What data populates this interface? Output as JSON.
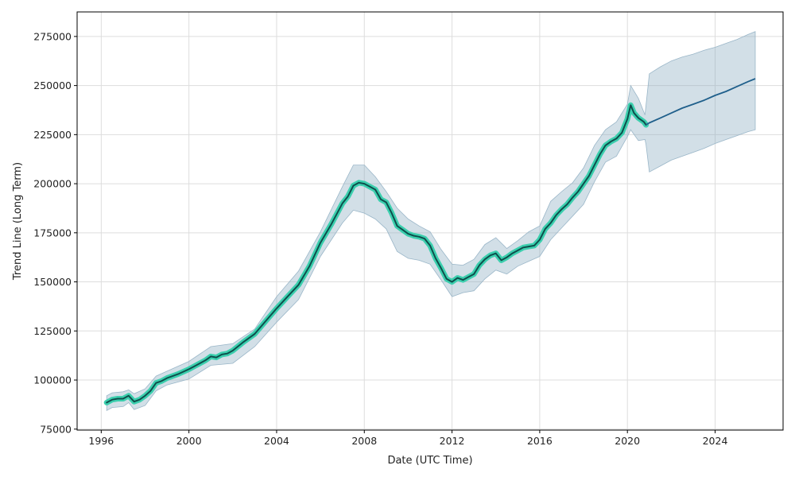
{
  "chart_data": {
    "type": "line",
    "title": "",
    "xlabel": "Date (UTC Time)",
    "ylabel": "Trend Line (Long Term)",
    "xlim": [
      1994.9,
      2027.1
    ],
    "ylim": [
      74500,
      287500
    ],
    "x_ticks": [
      1996,
      2000,
      2004,
      2008,
      2012,
      2016,
      2020,
      2024
    ],
    "y_ticks": [
      75000,
      100000,
      125000,
      150000,
      175000,
      200000,
      225000,
      250000,
      275000
    ],
    "grid": true,
    "legend": "none",
    "colors": {
      "history_line": "#0d4f4c",
      "history_glow": "#3ccfae",
      "forecast_line": "#1f5f8b",
      "band": "#8fb0c4"
    },
    "series": [
      {
        "kind": "history",
        "x": [
          1996.25,
          1996.5,
          1996.75,
          1997.0,
          1997.25,
          1997.5,
          1997.75,
          1998.0,
          1998.25,
          1998.5,
          1998.75,
          1999.0,
          1999.5,
          2000.0,
          2000.25,
          2000.5,
          2000.75,
          2001.0,
          2001.25,
          2001.5,
          2001.75,
          2002.0,
          2002.5,
          2003.0,
          2003.5,
          2004.0,
          2004.5,
          2005.0,
          2005.5,
          2006.0,
          2006.5,
          2007.0,
          2007.25,
          2007.5,
          2007.75,
          2008.0,
          2008.25,
          2008.5,
          2008.75,
          2009.0,
          2009.25,
          2009.5,
          2009.75,
          2010.0,
          2010.25,
          2010.5,
          2010.75,
          2011.0,
          2011.25,
          2011.5,
          2011.75,
          2012.0,
          2012.25,
          2012.5,
          2012.75,
          2013.0,
          2013.25,
          2013.5,
          2013.75,
          2014.0,
          2014.25,
          2014.5,
          2014.75,
          2015.0,
          2015.25,
          2015.5,
          2015.75,
          2016.0,
          2016.25,
          2016.5,
          2016.75,
          2017.0,
          2017.25,
          2017.5,
          2017.75,
          2018.0,
          2018.25,
          2018.5,
          2018.75,
          2019.0,
          2019.25,
          2019.5,
          2019.75,
          2020.0,
          2020.15,
          2020.3,
          2020.5,
          2020.75,
          2020.85
        ],
        "y": [
          88500,
          90000,
          90500,
          90500,
          92000,
          89000,
          90000,
          92000,
          94500,
          98500,
          99500,
          101000,
          103000,
          105500,
          107000,
          108500,
          110000,
          112000,
          111500,
          113000,
          113500,
          115000,
          119500,
          123500,
          130000,
          136500,
          142500,
          148500,
          158000,
          170000,
          179500,
          190000,
          193500,
          199000,
          200500,
          200000,
          198500,
          197000,
          192000,
          190500,
          185000,
          178500,
          176500,
          174500,
          173500,
          173000,
          172000,
          168500,
          162000,
          157000,
          151500,
          150000,
          152000,
          151000,
          152500,
          154000,
          158500,
          161500,
          163500,
          164500,
          161000,
          162500,
          164500,
          166000,
          167500,
          168000,
          168500,
          171500,
          177000,
          180000,
          184000,
          187000,
          189500,
          193000,
          196000,
          200000,
          204000,
          209500,
          215000,
          219500,
          221500,
          223000,
          226000,
          233000,
          240000,
          236000,
          233500,
          231500,
          230000
        ]
      },
      {
        "kind": "forecast",
        "x": [
          2020.85,
          2021.0,
          2021.5,
          2022.0,
          2022.5,
          2023.0,
          2023.5,
          2024.0,
          2024.5,
          2025.0,
          2025.5,
          2025.83
        ],
        "y": [
          230000,
          231000,
          233500,
          236000,
          238500,
          240500,
          242500,
          245000,
          247000,
          249500,
          252000,
          253500
        ]
      }
    ],
    "band": {
      "x": [
        1996.25,
        1996.5,
        1997.0,
        1997.25,
        1997.5,
        1998.0,
        1998.5,
        1999.0,
        2000.0,
        2001.0,
        2002.0,
        2003.0,
        2004.0,
        2005.0,
        2006.0,
        2007.0,
        2007.5,
        2008.0,
        2008.5,
        2009.0,
        2009.5,
        2010.0,
        2010.5,
        2011.0,
        2011.5,
        2012.0,
        2012.5,
        2013.0,
        2013.5,
        2014.0,
        2014.5,
        2015.0,
        2015.5,
        2016.0,
        2016.5,
        2017.0,
        2017.5,
        2018.0,
        2018.5,
        2019.0,
        2019.5,
        2020.0,
        2020.15,
        2020.5,
        2020.8,
        2020.85,
        2021.0,
        2021.5,
        2022.0,
        2022.5,
        2023.0,
        2023.5,
        2024.0,
        2024.5,
        2025.0,
        2025.5,
        2025.83
      ],
      "upper": [
        92000,
        93500,
        94000,
        95000,
        93000,
        95500,
        102000,
        104500,
        109500,
        117000,
        118500,
        126000,
        142500,
        155500,
        175500,
        198500,
        209500,
        209500,
        203500,
        196000,
        187500,
        182000,
        178500,
        175500,
        166500,
        159000,
        158500,
        161500,
        169000,
        172500,
        167000,
        171000,
        175500,
        178500,
        191000,
        196000,
        200500,
        208000,
        219500,
        227500,
        231500,
        240500,
        250000,
        243500,
        235000,
        240000,
        256000,
        259500,
        262500,
        264500,
        266000,
        268000,
        269500,
        271500,
        273500,
        276000,
        277500
      ],
      "lower": [
        84500,
        86000,
        86500,
        88500,
        85000,
        87000,
        94500,
        97500,
        100500,
        107500,
        108500,
        117000,
        129500,
        141000,
        163000,
        180000,
        186500,
        185000,
        182000,
        177000,
        165500,
        162000,
        161000,
        159000,
        151000,
        142500,
        144500,
        145500,
        151500,
        156000,
        154000,
        158000,
        160500,
        163000,
        171500,
        177500,
        183500,
        189500,
        201000,
        211000,
        214000,
        224000,
        227500,
        222000,
        222500,
        220000,
        206000,
        209000,
        212000,
        214000,
        216000,
        218000,
        220500,
        222500,
        224500,
        226500,
        227500
      ]
    }
  }
}
